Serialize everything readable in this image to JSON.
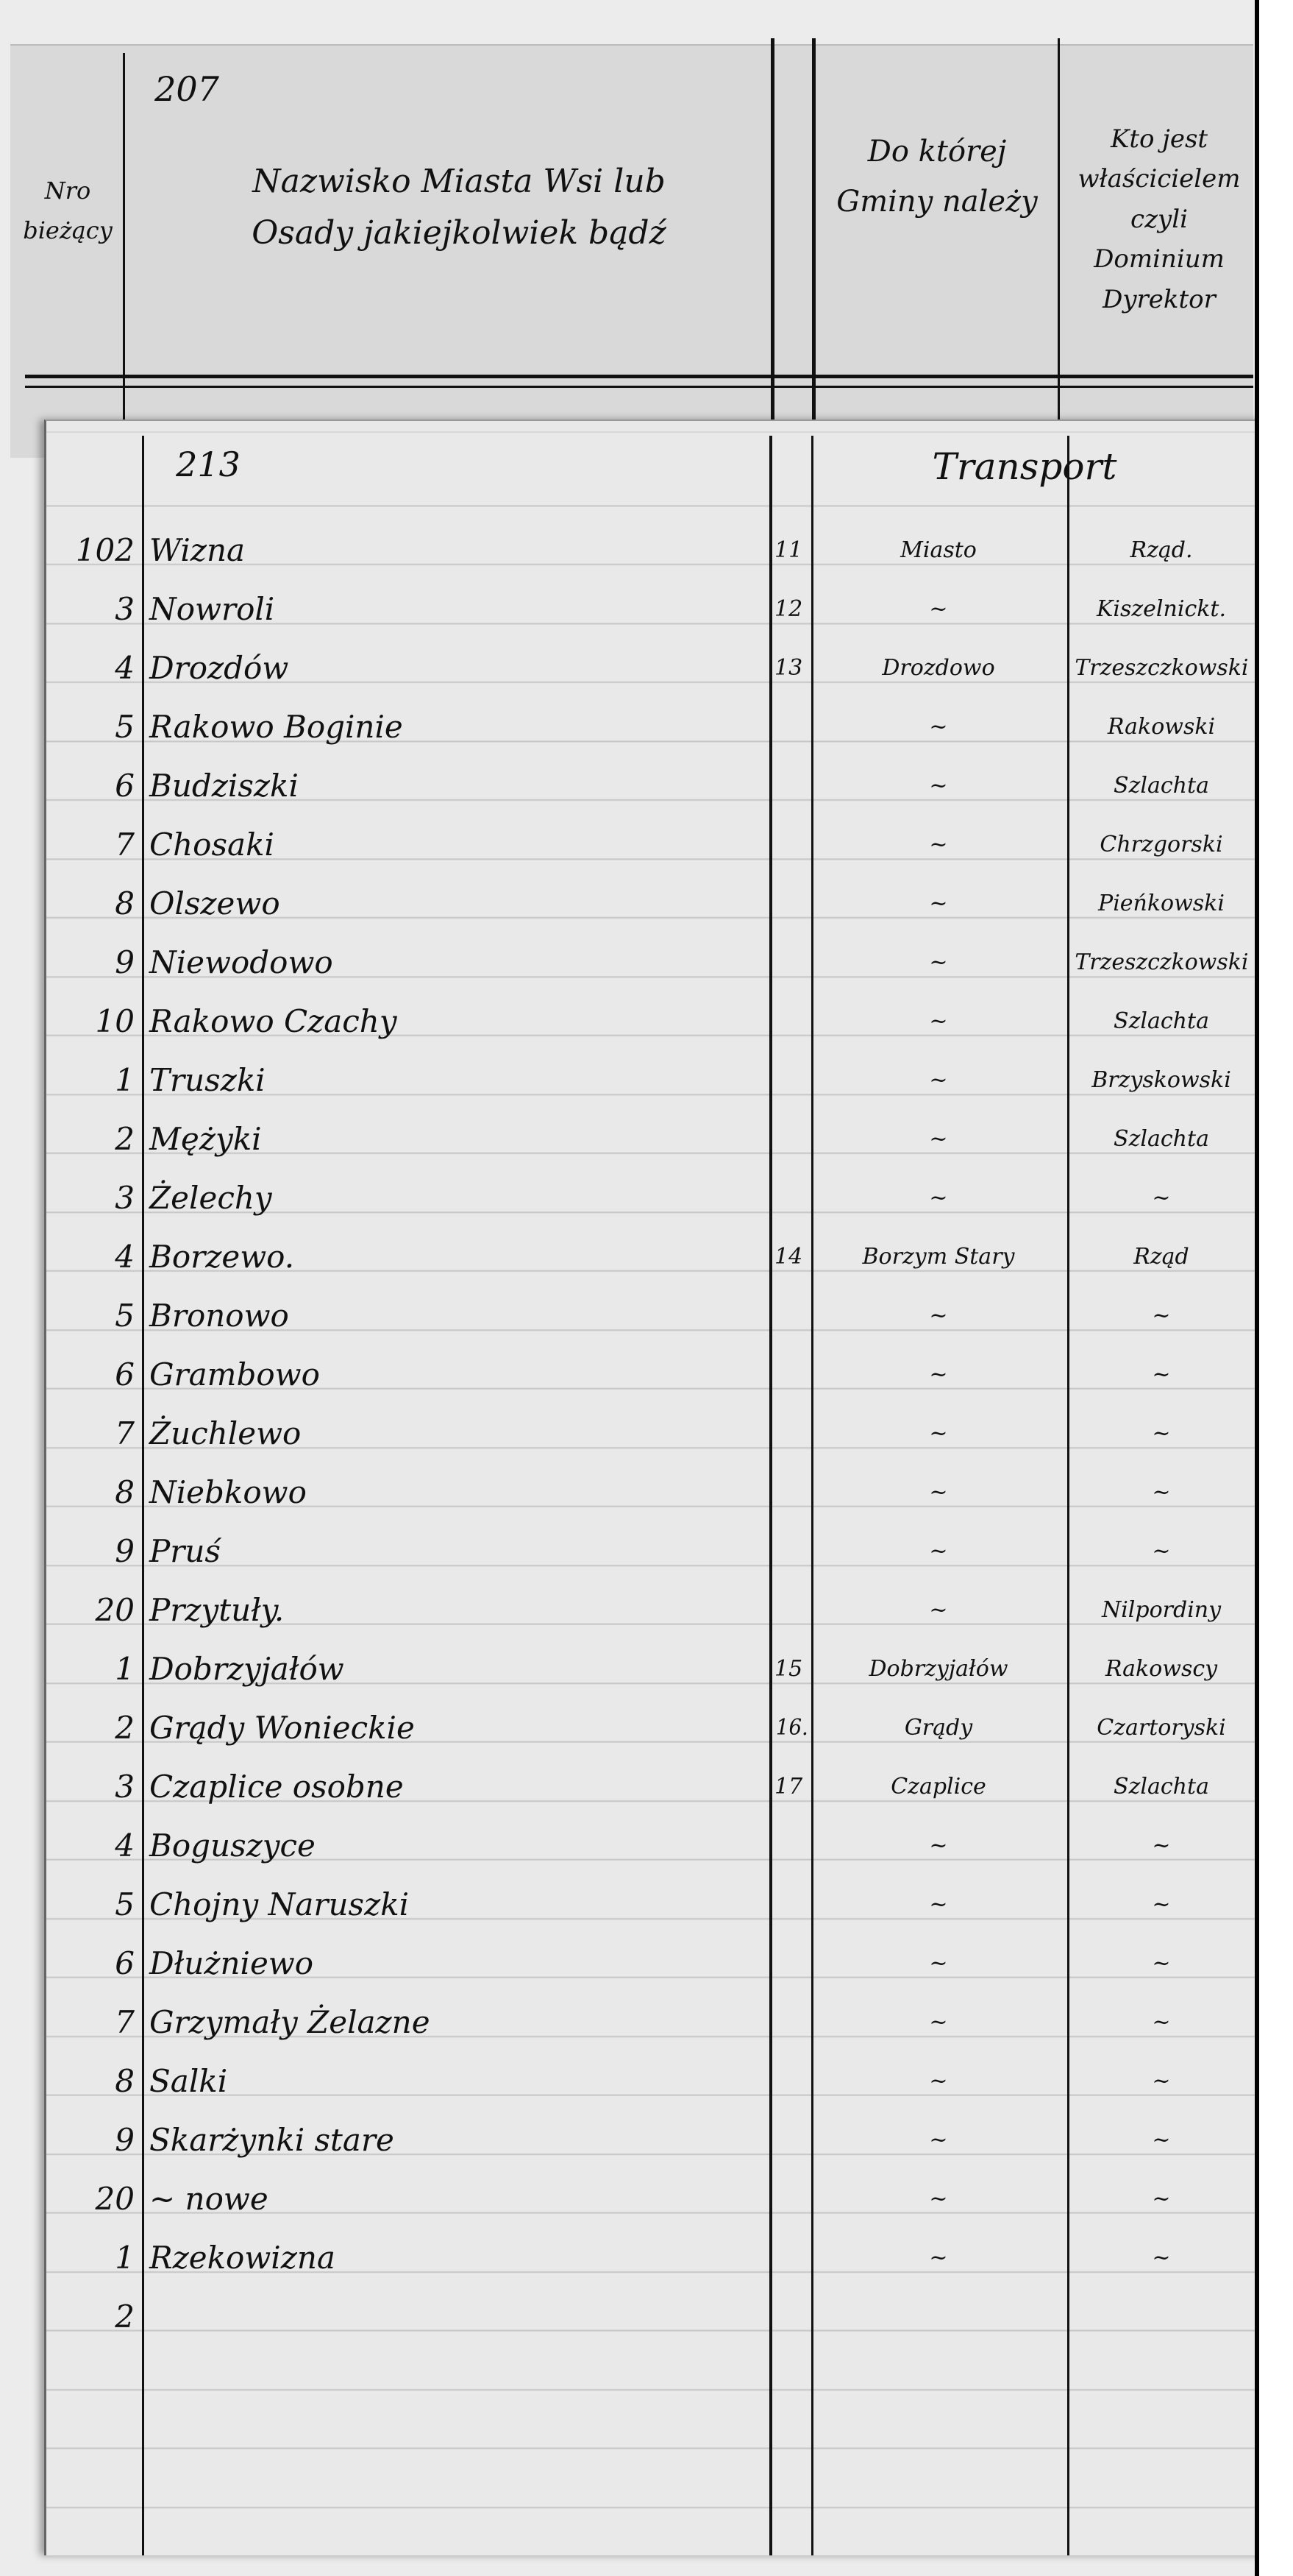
{
  "header_page": {
    "page_number": "207",
    "columns": [
      {
        "label": "Nro bieżący"
      },
      {
        "label": "Nazwisko Miasta Wsi lub Osady jakiejkolwiek bądź"
      },
      {
        "label": "Do której Gminy należy"
      },
      {
        "label": "Kto jest właścicielem czyli Dominium Dyrektor"
      }
    ]
  },
  "register_page": {
    "page_number": "213",
    "transport_label": "Transport",
    "rows": [
      {
        "num": "102",
        "place": "Wizna",
        "nr": "11",
        "parish": "Miasto",
        "owner": "Rząd."
      },
      {
        "num": "3",
        "place": "Nowroli",
        "nr": "12",
        "parish": "~",
        "owner": "Kiszelnickt."
      },
      {
        "num": "4",
        "place": "Drozdów",
        "nr": "13",
        "parish": "Drozdowo",
        "owner": "Trzeszczkowski"
      },
      {
        "num": "5",
        "place": "Rakowo Boginie",
        "nr": "",
        "parish": "~",
        "owner": "Rakowski"
      },
      {
        "num": "6",
        "place": "Budziszki",
        "nr": "",
        "parish": "~",
        "owner": "Szlachta"
      },
      {
        "num": "7",
        "place": "Chosaki",
        "nr": "",
        "parish": "~",
        "owner": "Chrzgorski"
      },
      {
        "num": "8",
        "place": "Olszewo",
        "nr": "",
        "parish": "~",
        "owner": "Pieńkowski"
      },
      {
        "num": "9",
        "place": "Niewodowo",
        "nr": "",
        "parish": "~",
        "owner": "Trzeszczkowski"
      },
      {
        "num": "10",
        "place": "Rakowo Czachy",
        "nr": "",
        "parish": "~",
        "owner": "Szlachta"
      },
      {
        "num": "1",
        "place": "Truszki",
        "nr": "",
        "parish": "~",
        "owner": "Brzyskowski"
      },
      {
        "num": "2",
        "place": "Mężyki",
        "nr": "",
        "parish": "~",
        "owner": "Szlachta"
      },
      {
        "num": "3",
        "place": "Żelechy",
        "nr": "",
        "parish": "~",
        "owner": "~"
      },
      {
        "num": "4",
        "place": "Borzewo.",
        "nr": "14",
        "parish": "Borzym Stary",
        "owner": "Rząd"
      },
      {
        "num": "5",
        "place": "Bronowo",
        "nr": "",
        "parish": "~",
        "owner": "~"
      },
      {
        "num": "6",
        "place": "Grambowo",
        "nr": "",
        "parish": "~",
        "owner": "~"
      },
      {
        "num": "7",
        "place": "Żuchlewo",
        "nr": "",
        "parish": "~",
        "owner": "~"
      },
      {
        "num": "8",
        "place": "Niebkowo",
        "nr": "",
        "parish": "~",
        "owner": "~"
      },
      {
        "num": "9",
        "place": "Pruś",
        "nr": "",
        "parish": "~",
        "owner": "~"
      },
      {
        "num": "20",
        "place": "Przytuły.",
        "nr": "",
        "parish": "~",
        "owner": "Nilpordiny"
      },
      {
        "num": "1",
        "place": "Dobrzyjałów",
        "nr": "15",
        "parish": "Dobrzyjałów",
        "owner": "Rakowscy"
      },
      {
        "num": "2",
        "place": "Grądy Wonieckie",
        "nr": "16.",
        "parish": "Grądy",
        "owner": "Czartoryski"
      },
      {
        "num": "3",
        "place": "Czaplice osobne",
        "nr": "17",
        "parish": "Czaplice",
        "owner": "Szlachta"
      },
      {
        "num": "4",
        "place": "Boguszyce",
        "nr": "",
        "parish": "~",
        "owner": "~"
      },
      {
        "num": "5",
        "place": "Chojny Naruszki",
        "nr": "",
        "parish": "~",
        "owner": "~"
      },
      {
        "num": "6",
        "place": "   Dłużniewo",
        "nr": "",
        "parish": "~",
        "owner": "~"
      },
      {
        "num": "7",
        "place": "Grzymały Żelazne",
        "nr": "",
        "parish": "~",
        "owner": "~"
      },
      {
        "num": "8",
        "place": "Salki",
        "nr": "",
        "parish": "~",
        "owner": "~"
      },
      {
        "num": "9",
        "place": "Skarżynki stare",
        "nr": "",
        "parish": "~",
        "owner": "~"
      },
      {
        "num": "20",
        "place": "  ~      nowe",
        "nr": "",
        "parish": "~",
        "owner": "~"
      },
      {
        "num": "1",
        "place": "Rzekowizna",
        "nr": "",
        "parish": "~",
        "owner": "~"
      },
      {
        "num": "2",
        "place": "",
        "nr": "",
        "parish": "",
        "owner": ""
      }
    ]
  }
}
